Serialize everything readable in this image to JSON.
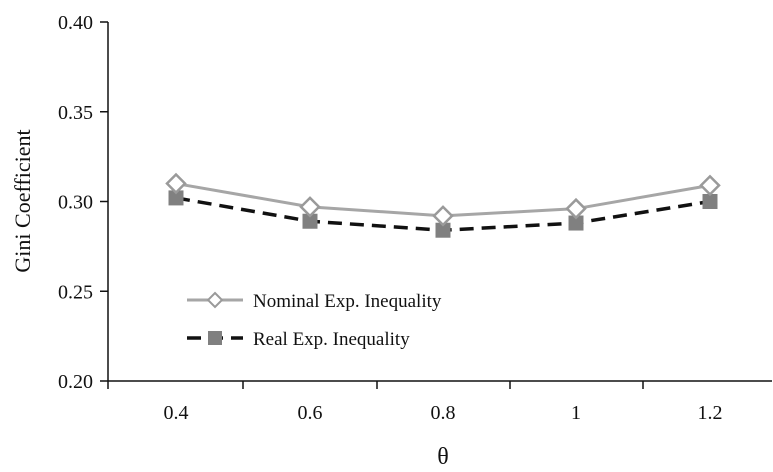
{
  "chart_data": {
    "type": "line",
    "title": "",
    "xlabel": "θ",
    "ylabel": "Gini Coefficient",
    "categories": [
      "0.4",
      "0.6",
      "0.8",
      "1",
      "1.2"
    ],
    "ylim": [
      0.2,
      0.4
    ],
    "yticks": [
      "0.20",
      "0.25",
      "0.30",
      "0.35",
      "0.40"
    ],
    "grid": false,
    "legend_position": "lower-left",
    "series": [
      {
        "name": "Nominal Exp. Inequality",
        "values": [
          0.31,
          0.297,
          0.292,
          0.296,
          0.309
        ],
        "color": "#a6a6a6",
        "line_style": "solid",
        "marker": "diamond-open"
      },
      {
        "name": "Real Exp. Inequality",
        "values": [
          0.302,
          0.289,
          0.284,
          0.288,
          0.3
        ],
        "color": "#111111",
        "marker_color": "#808080",
        "line_style": "dashed",
        "marker": "square-filled"
      }
    ]
  }
}
